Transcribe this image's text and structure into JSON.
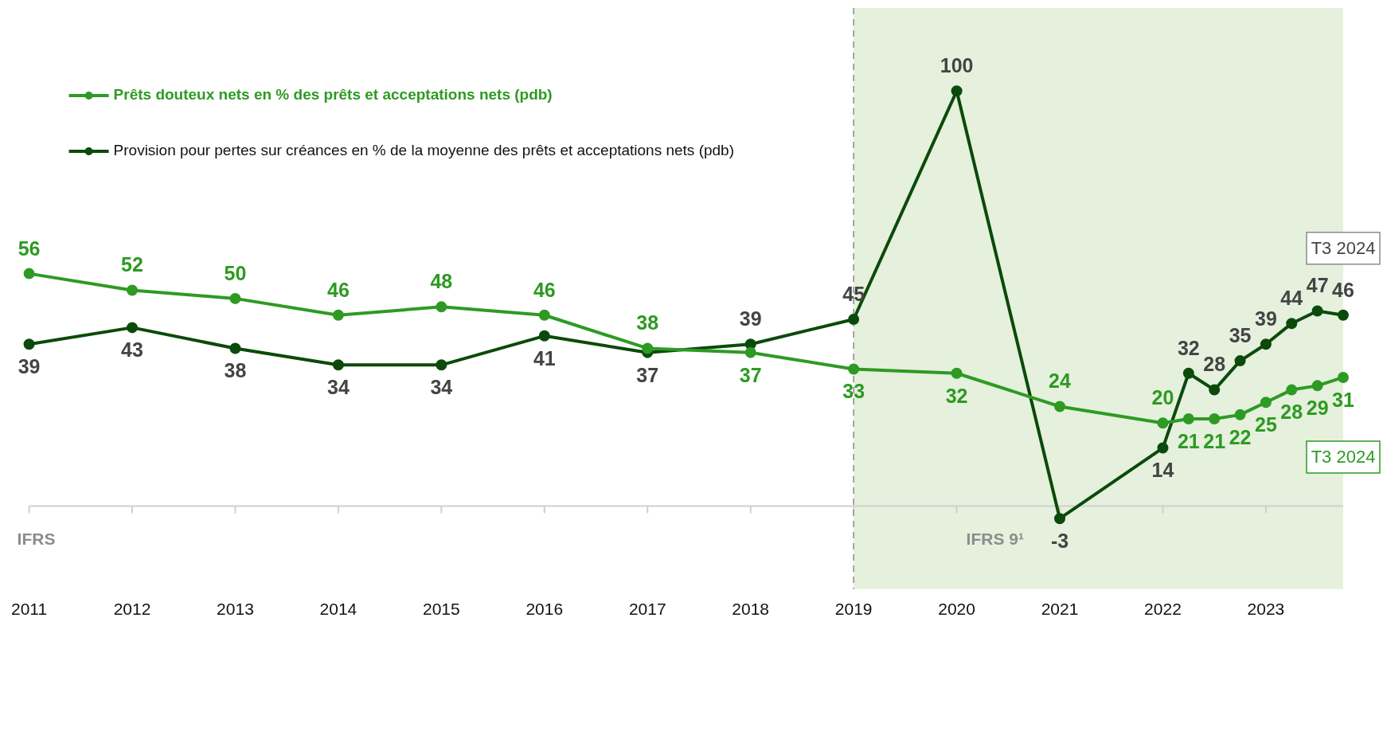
{
  "chart_data": {
    "type": "line",
    "x": [
      2011,
      2012,
      2013,
      2014,
      2015,
      2016,
      2017,
      2018,
      2019,
      2020,
      2021,
      2022,
      2022.25,
      2022.5,
      2022.75,
      2023,
      2023.25,
      2023.5,
      2023.75
    ],
    "series": [
      {
        "name": "Prêts douteux nets en % des prêts et acceptations nets (pdb)",
        "color": "#2e9a23",
        "values": [
          56,
          52,
          50,
          46,
          48,
          46,
          38,
          37,
          33,
          32,
          24,
          20,
          21,
          21,
          22,
          25,
          28,
          29,
          31
        ]
      },
      {
        "name": "Provision pour pertes sur créances en % de la moyenne des prêts et acceptations nets (pdb)",
        "color": "#0b4a0b",
        "values": [
          39,
          43,
          38,
          34,
          34,
          41,
          37,
          39,
          45,
          100,
          -3,
          14,
          32,
          28,
          35,
          39,
          44,
          47,
          46
        ]
      }
    ],
    "xlim": [
      2011,
      2023.75
    ],
    "xticks": [
      2011,
      2012,
      2013,
      2014,
      2015,
      2016,
      2017,
      2018,
      2019,
      2020,
      2021,
      2022,
      2023
    ],
    "ylim": [
      -20,
      120
    ],
    "tick_labels": "x",
    "marker": "circle",
    "line_style": "solid",
    "legend": "top left",
    "data_labels": true,
    "ref_lines": [
      {
        "axis": "y",
        "value": 0
      },
      {
        "axis": "x",
        "value": 2019,
        "line_style": "dashed",
        "color": "#8a8a8a"
      }
    ],
    "bands": [
      {
        "axis": "x",
        "from": 2019,
        "to": 2023.75,
        "label": "IFRS 9¹",
        "color": "#e5f0dd"
      }
    ],
    "annotations": [
      "IFRS",
      {
        "text": "T3 2024",
        "x": 2023.75
      },
      {
        "text": "T3 2024",
        "x": 2023.75
      }
    ]
  }
}
